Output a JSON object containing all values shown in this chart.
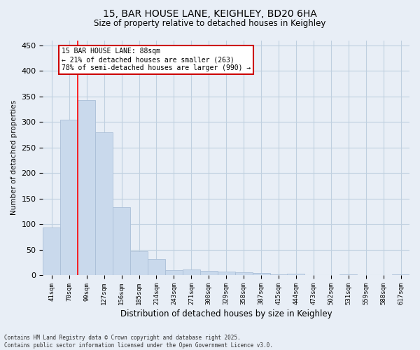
{
  "title_line1": "15, BAR HOUSE LANE, KEIGHLEY, BD20 6HA",
  "title_line2": "Size of property relative to detached houses in Keighley",
  "xlabel": "Distribution of detached houses by size in Keighley",
  "ylabel": "Number of detached properties",
  "categories": [
    "41sqm",
    "70sqm",
    "99sqm",
    "127sqm",
    "156sqm",
    "185sqm",
    "214sqm",
    "243sqm",
    "271sqm",
    "300sqm",
    "329sqm",
    "358sqm",
    "387sqm",
    "415sqm",
    "444sqm",
    "473sqm",
    "502sqm",
    "531sqm",
    "559sqm",
    "588sqm",
    "617sqm"
  ],
  "values": [
    93,
    305,
    343,
    280,
    133,
    47,
    31,
    10,
    11,
    8,
    7,
    6,
    4,
    1,
    3,
    0,
    0,
    1,
    0,
    0,
    2
  ],
  "bar_color": "#c9d9ec",
  "bar_edge_color": "#aabfd8",
  "grid_color": "#c0d0e0",
  "bg_color": "#e8eef6",
  "red_line_x": 1.5,
  "annotation_text": "15 BAR HOUSE LANE: 88sqm\n← 21% of detached houses are smaller (263)\n78% of semi-detached houses are larger (990) →",
  "annotation_box_color": "#ffffff",
  "annotation_box_edge": "#cc0000",
  "footnote": "Contains HM Land Registry data © Crown copyright and database right 2025.\nContains public sector information licensed under the Open Government Licence v3.0.",
  "ylim": [
    0,
    460
  ],
  "yticks": [
    0,
    50,
    100,
    150,
    200,
    250,
    300,
    350,
    400,
    450
  ]
}
